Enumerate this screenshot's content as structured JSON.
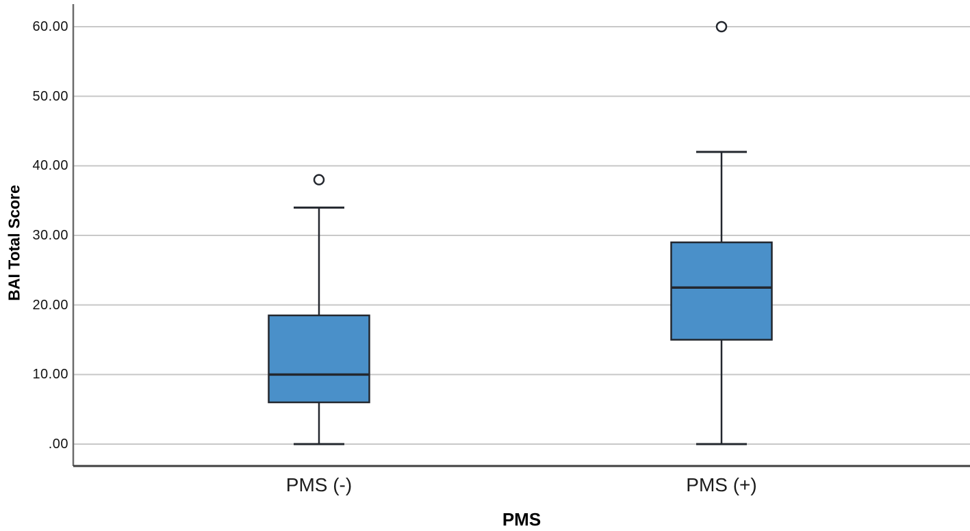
{
  "chart_data": {
    "type": "boxplot",
    "title": "",
    "xlabel": "PMS",
    "ylabel": "BAI Total Score",
    "categories": [
      "PMS (-)",
      "PMS (+)"
    ],
    "y_tick_labels": [
      ".00",
      "10.00",
      "20.00",
      "30.00",
      "40.00",
      "50.00",
      "60.00"
    ],
    "y_tick_values": [
      0,
      10,
      20,
      30,
      40,
      50,
      60
    ],
    "ylim": [
      -3.2,
      63.3
    ],
    "grid": true,
    "legend": "none",
    "series": [
      {
        "category": "PMS (-)",
        "whisker_low": 0,
        "q1": 6,
        "median": 10,
        "q3": 18.5,
        "whisker_high": 34,
        "outliers": [
          38
        ]
      },
      {
        "category": "PMS (+)",
        "whisker_low": 0,
        "q1": 15,
        "median": 22.5,
        "q3": 29,
        "whisker_high": 42,
        "outliers": [
          60
        ]
      }
    ],
    "colors": {
      "box_fill": "#4a90c9",
      "box_stroke": "#23272e",
      "gridline": "#c8c8c8",
      "y_axis_line": "#6a6a6a",
      "x_axis_line": "#3f3f3f",
      "tick_text": "#131313",
      "category_text": "#1c1c1c",
      "title_text": "#000000",
      "background": "#ffffff"
    }
  }
}
